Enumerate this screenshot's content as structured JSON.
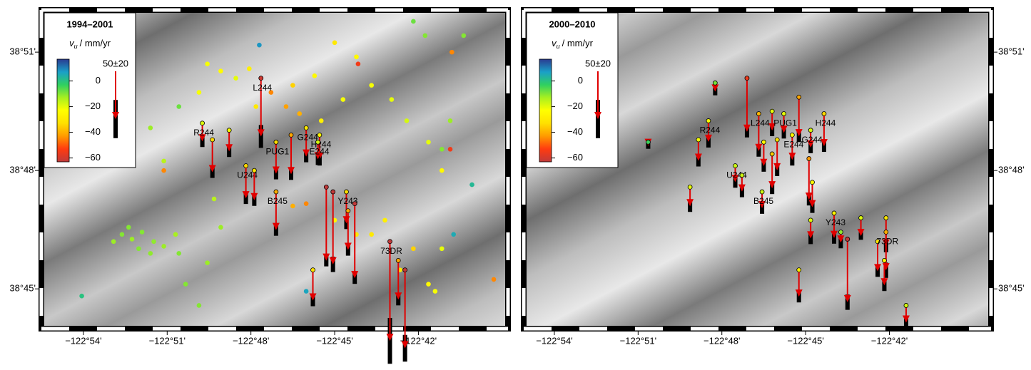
{
  "panels": [
    {
      "title": "1994–2001",
      "xlim": [
        -122.9234,
        -122.6482
      ],
      "ylim": [
        38.7344,
        38.8666
      ],
      "xticks": [
        {
          "value": -122.9,
          "label": "−122°54'"
        },
        {
          "value": -122.85,
          "label": "−122°51'"
        },
        {
          "value": -122.8,
          "label": "−122°48'"
        },
        {
          "value": -122.75,
          "label": "−122°45'"
        },
        {
          "value": -122.7,
          "label": "−122°42'"
        }
      ],
      "yticks": [
        {
          "value": 38.85,
          "label": "38°51'"
        },
        {
          "value": 38.8,
          "label": "38°48'"
        },
        {
          "value": 38.75,
          "label": "38°45'"
        }
      ],
      "colorbar": {
        "symbol": "v",
        "subscript": "u",
        "unit": "/ mm/yr",
        "range": [
          -63,
          17
        ],
        "colormap": [
          "#c03a3a",
          "#ff3b10",
          "#ff9a00",
          "#ffe000",
          "#ffff00",
          "#a8f020",
          "#30d060",
          "#1aa0c8",
          "#2a3a90"
        ],
        "ticks": [
          {
            "value": 0,
            "label": "0"
          },
          {
            "value": -20,
            "label": "−20"
          },
          {
            "value": -40,
            "label": "−40"
          },
          {
            "value": -60,
            "label": "−60"
          }
        ]
      },
      "scale": {
        "label": "50±20",
        "value": 50,
        "err": 20
      },
      "points": [
        [
          -122.877,
          38.773,
          -10
        ],
        [
          -122.871,
          38.771,
          -12
        ],
        [
          -122.865,
          38.774,
          -10
        ],
        [
          -122.858,
          38.77,
          -11
        ],
        [
          -122.852,
          38.768,
          -12
        ],
        [
          -122.867,
          38.767,
          -10
        ],
        [
          -122.845,
          38.773,
          -13
        ],
        [
          -122.873,
          38.776,
          -10
        ],
        [
          -122.86,
          38.765,
          -11
        ],
        [
          -122.882,
          38.77,
          -12
        ],
        [
          -122.843,
          38.765,
          -10
        ],
        [
          -122.826,
          38.845,
          -22
        ],
        [
          -122.818,
          38.842,
          -24
        ],
        [
          -122.809,
          38.839,
          -20
        ],
        [
          -122.831,
          38.833,
          -22
        ],
        [
          -122.801,
          38.843,
          -28
        ],
        [
          -122.775,
          38.836,
          -35
        ],
        [
          -122.762,
          38.84,
          -25
        ],
        [
          -122.75,
          38.854,
          -30
        ],
        [
          -122.737,
          38.848,
          -25
        ],
        [
          -122.728,
          38.836,
          -22
        ],
        [
          -122.716,
          38.83,
          -20
        ],
        [
          -122.707,
          38.821,
          -18
        ],
        [
          -122.694,
          38.812,
          -20
        ],
        [
          -122.686,
          38.8,
          -25
        ],
        [
          -122.745,
          38.83,
          -22
        ],
        [
          -122.758,
          38.821,
          -28
        ],
        [
          -122.771,
          38.824,
          -40
        ],
        [
          -122.797,
          38.827,
          -30
        ],
        [
          -122.788,
          38.833,
          -45
        ],
        [
          -122.779,
          38.827,
          -42
        ],
        [
          -122.728,
          38.773,
          -30
        ],
        [
          -122.72,
          38.779,
          -28
        ],
        [
          -122.703,
          38.767,
          -35
        ],
        [
          -122.694,
          38.752,
          -25
        ],
        [
          -122.69,
          38.749,
          -22
        ],
        [
          -122.711,
          38.758,
          -30
        ],
        [
          -122.686,
          38.767,
          -20
        ],
        [
          -122.737,
          38.773,
          -30
        ],
        [
          -122.75,
          38.779,
          -25
        ],
        [
          -122.767,
          38.786,
          -45
        ],
        [
          -122.775,
          38.785,
          -40
        ],
        [
          -122.843,
          38.827,
          -8
        ],
        [
          -122.86,
          38.818,
          -12
        ],
        [
          -122.852,
          38.804,
          -15
        ],
        [
          -122.822,
          38.788,
          -15
        ],
        [
          -122.818,
          38.776,
          -12
        ],
        [
          -122.839,
          38.752,
          -10
        ],
        [
          -122.831,
          38.743,
          -10
        ],
        [
          -122.826,
          38.761,
          -12
        ],
        [
          -122.703,
          38.863,
          -8
        ],
        [
          -122.696,
          38.857,
          -10
        ],
        [
          -122.673,
          38.857,
          -10
        ],
        [
          -122.681,
          38.821,
          -12
        ],
        [
          -122.686,
          38.809,
          -10
        ],
        [
          -122.795,
          38.853,
          8
        ],
        [
          -122.767,
          38.749,
          6
        ],
        [
          -122.679,
          38.773,
          5
        ],
        [
          -122.668,
          38.794,
          2
        ],
        [
          -122.901,
          38.747,
          0
        ],
        [
          -122.736,
          38.845,
          -55
        ],
        [
          -122.68,
          38.85,
          -45
        ],
        [
          -122.681,
          38.809,
          -55
        ],
        [
          -122.655,
          38.754,
          -45
        ],
        [
          -122.852,
          38.8,
          -45
        ]
      ],
      "stations": [
        {
          "label": "R244",
          "lon": -122.829,
          "lat": 38.82,
          "v": -19,
          "err": 6
        },
        {
          "lon": -122.823,
          "lat": 38.813,
          "v": -34,
          "err": 6
        },
        {
          "lon": -122.813,
          "lat": 38.817,
          "v": -22,
          "err": 6
        },
        {
          "label": "L244",
          "lon": -122.794,
          "lat": 38.839,
          "v": -61,
          "err": 12
        },
        {
          "label": "PUG1",
          "lon": -122.785,
          "lat": 38.812,
          "v": -33,
          "err": 6
        },
        {
          "lon": -122.776,
          "lat": 38.815,
          "v": -41,
          "err": 6
        },
        {
          "label": "G244",
          "lon": -122.767,
          "lat": 38.818,
          "v": -30,
          "err": 6
        },
        {
          "label": "H244",
          "lon": -122.759,
          "lat": 38.815,
          "v": -26,
          "err": 6
        },
        {
          "label": "E244",
          "lon": -122.76,
          "lat": 38.812,
          "v": -18,
          "err": 6
        },
        {
          "label": "U244",
          "lon": -122.803,
          "lat": 38.802,
          "v": -34,
          "err": 6
        },
        {
          "lon": -122.798,
          "lat": 38.8,
          "v": -31,
          "err": 6
        },
        {
          "label": "B245",
          "lon": -122.785,
          "lat": 38.791,
          "v": -40,
          "err": 6
        },
        {
          "label": "Y243",
          "lon": -122.743,
          "lat": 38.791,
          "v": -33,
          "err": 6
        },
        {
          "lon": -122.755,
          "lat": 38.793,
          "v": -77,
          "err": 6
        },
        {
          "lon": -122.751,
          "lat": 38.791,
          "v": -76,
          "err": 8
        },
        {
          "lon": -122.738,
          "lat": 38.786,
          "v": -78,
          "err": 6
        },
        {
          "lon": -122.742,
          "lat": 38.783,
          "v": -41,
          "err": 6
        },
        {
          "label": "73DR",
          "lon": -122.717,
          "lat": 38.77,
          "v": -104,
          "err": 24
        },
        {
          "lon": -122.708,
          "lat": 38.758,
          "v": -82,
          "err": 14
        },
        {
          "lon": -122.712,
          "lat": 38.762,
          "v": -41,
          "err": 6
        },
        {
          "lon": -122.763,
          "lat": 38.758,
          "v": -32,
          "err": 6
        }
      ]
    },
    {
      "title": "2000–2010",
      "xlim": [
        -122.9166,
        -122.641
      ],
      "ylim": [
        38.7344,
        38.8666
      ],
      "xticks": [
        {
          "value": -122.9,
          "label": "−122°54'"
        },
        {
          "value": -122.85,
          "label": "−122°51'"
        },
        {
          "value": -122.8,
          "label": "−122°48'"
        },
        {
          "value": -122.75,
          "label": "−122°45'"
        },
        {
          "value": -122.7,
          "label": "−122°42'"
        }
      ],
      "yticks": [
        {
          "value": 38.85,
          "label": "38°51'"
        },
        {
          "value": 38.8,
          "label": "38°48'"
        },
        {
          "value": 38.75,
          "label": "38°45'"
        }
      ],
      "colorbar": {
        "symbol": "v",
        "subscript": "u",
        "unit": "/ mm/yr",
        "range": [
          -63,
          17
        ],
        "colormap": [
          "#c03a3a",
          "#ff3b10",
          "#ff9a00",
          "#ffe000",
          "#ffff00",
          "#a8f020",
          "#30d060",
          "#1aa0c8",
          "#2a3a90"
        ],
        "ticks": [
          {
            "value": 0,
            "label": "0"
          },
          {
            "value": -20,
            "label": "−20"
          },
          {
            "value": -40,
            "label": "−40"
          },
          {
            "value": -60,
            "label": "−60"
          }
        ]
      },
      "scale": {
        "label": "50±20",
        "value": 50,
        "err": 20
      },
      "points": [],
      "stations": [
        {
          "lon": -122.844,
          "lat": 38.812,
          "v": -4,
          "err": 3
        },
        {
          "lon": -122.804,
          "lat": 38.837,
          "v": -9,
          "err": 4
        },
        {
          "label": "R244",
          "lon": -122.808,
          "lat": 38.821,
          "v": -22,
          "err": 6
        },
        {
          "lon": -122.814,
          "lat": 38.813,
          "v": -22,
          "err": 6
        },
        {
          "lon": -122.819,
          "lat": 38.793,
          "v": -20,
          "err": 6
        },
        {
          "lon": -122.785,
          "lat": 38.839,
          "v": -56,
          "err": 6
        },
        {
          "label": "L244",
          "lon": -122.778,
          "lat": 38.824,
          "v": -39,
          "err": 6
        },
        {
          "lon": -122.77,
          "lat": 38.825,
          "v": -20,
          "err": 6
        },
        {
          "label": "PUG1",
          "lon": -122.763,
          "lat": 38.824,
          "v": -20,
          "err": 6
        },
        {
          "lon": -122.754,
          "lat": 38.831,
          "v": -41,
          "err": 6
        },
        {
          "label": "G244",
          "lon": -122.747,
          "lat": 38.817,
          "v": -18,
          "err": 6
        },
        {
          "label": "H244",
          "lon": -122.739,
          "lat": 38.824,
          "v": -34,
          "err": 6
        },
        {
          "label": "E244",
          "lon": -122.758,
          "lat": 38.815,
          "v": -26,
          "err": 6
        },
        {
          "lon": -122.775,
          "lat": 38.812,
          "v": -25,
          "err": 6
        },
        {
          "lon": -122.767,
          "lat": 38.813,
          "v": -32,
          "err": 6
        },
        {
          "label": "U244",
          "lon": -122.792,
          "lat": 38.802,
          "v": -17,
          "err": 6
        },
        {
          "lon": -122.788,
          "lat": 38.798,
          "v": -17,
          "err": 6
        },
        {
          "label": "B245",
          "lon": -122.776,
          "lat": 38.791,
          "v": -17,
          "err": 6
        },
        {
          "lon": -122.77,
          "lat": 38.807,
          "v": -36,
          "err": 6
        },
        {
          "lon": -122.748,
          "lat": 38.805,
          "v": -43,
          "err": 6
        },
        {
          "lon": -122.746,
          "lat": 38.795,
          "v": -26,
          "err": 6
        },
        {
          "lon": -122.747,
          "lat": 38.779,
          "v": -19,
          "err": 6
        },
        {
          "label": "Y243",
          "lon": -122.733,
          "lat": 38.782,
          "v": -26,
          "err": 6
        },
        {
          "lon": -122.729,
          "lat": 38.774,
          "v": -11,
          "err": 6
        },
        {
          "lon": -122.725,
          "lat": 38.771,
          "v": -66,
          "err": 8
        },
        {
          "lon": -122.717,
          "lat": 38.78,
          "v": -19,
          "err": 4
        },
        {
          "lon": -122.707,
          "lat": 38.77,
          "v": -31,
          "err": 6
        },
        {
          "lon": -122.702,
          "lat": 38.78,
          "v": -30,
          "err": 6
        },
        {
          "label": "73DR",
          "lon": -122.702,
          "lat": 38.774,
          "v": -40,
          "err": 8
        },
        {
          "lon": -122.703,
          "lat": 38.762,
          "v": -26,
          "err": 6
        },
        {
          "lon": -122.754,
          "lat": 38.758,
          "v": -28,
          "err": 6
        },
        {
          "lon": -122.69,
          "lat": 38.743,
          "v": -18,
          "err": 4
        }
      ]
    }
  ]
}
